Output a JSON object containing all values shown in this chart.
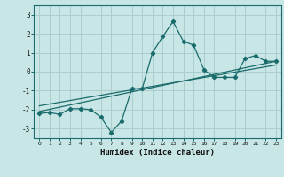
{
  "xlabel": "Humidex (Indice chaleur)",
  "ylabel": "",
  "xlim": [
    -0.5,
    23.5
  ],
  "ylim": [
    -3.5,
    3.5
  ],
  "yticks": [
    -3,
    -2,
    -1,
    0,
    1,
    2,
    3
  ],
  "xticks": [
    0,
    1,
    2,
    3,
    4,
    5,
    6,
    7,
    8,
    9,
    10,
    11,
    12,
    13,
    14,
    15,
    16,
    17,
    18,
    19,
    20,
    21,
    22,
    23
  ],
  "background_color": "#c8e6e6",
  "grid_color": "#aacece",
  "line_color": "#1a6b6b",
  "line1_x": [
    0,
    1,
    2,
    3,
    4,
    5,
    6,
    7,
    8,
    9,
    10,
    11,
    12,
    13,
    14,
    15,
    16,
    17,
    18,
    19,
    20,
    21,
    22,
    23
  ],
  "line1_y": [
    -2.2,
    -2.15,
    -2.25,
    -1.95,
    -1.95,
    -2.0,
    -2.4,
    -3.2,
    -2.6,
    -0.9,
    -0.9,
    1.0,
    1.85,
    2.65,
    1.6,
    1.4,
    0.1,
    -0.3,
    -0.3,
    -0.3,
    0.7,
    0.85,
    0.55,
    0.55
  ],
  "line2_x": [
    0,
    23
  ],
  "line2_y": [
    -2.1,
    0.55
  ],
  "line3_x": [
    0,
    23
  ],
  "line3_y": [
    -1.8,
    0.35
  ]
}
